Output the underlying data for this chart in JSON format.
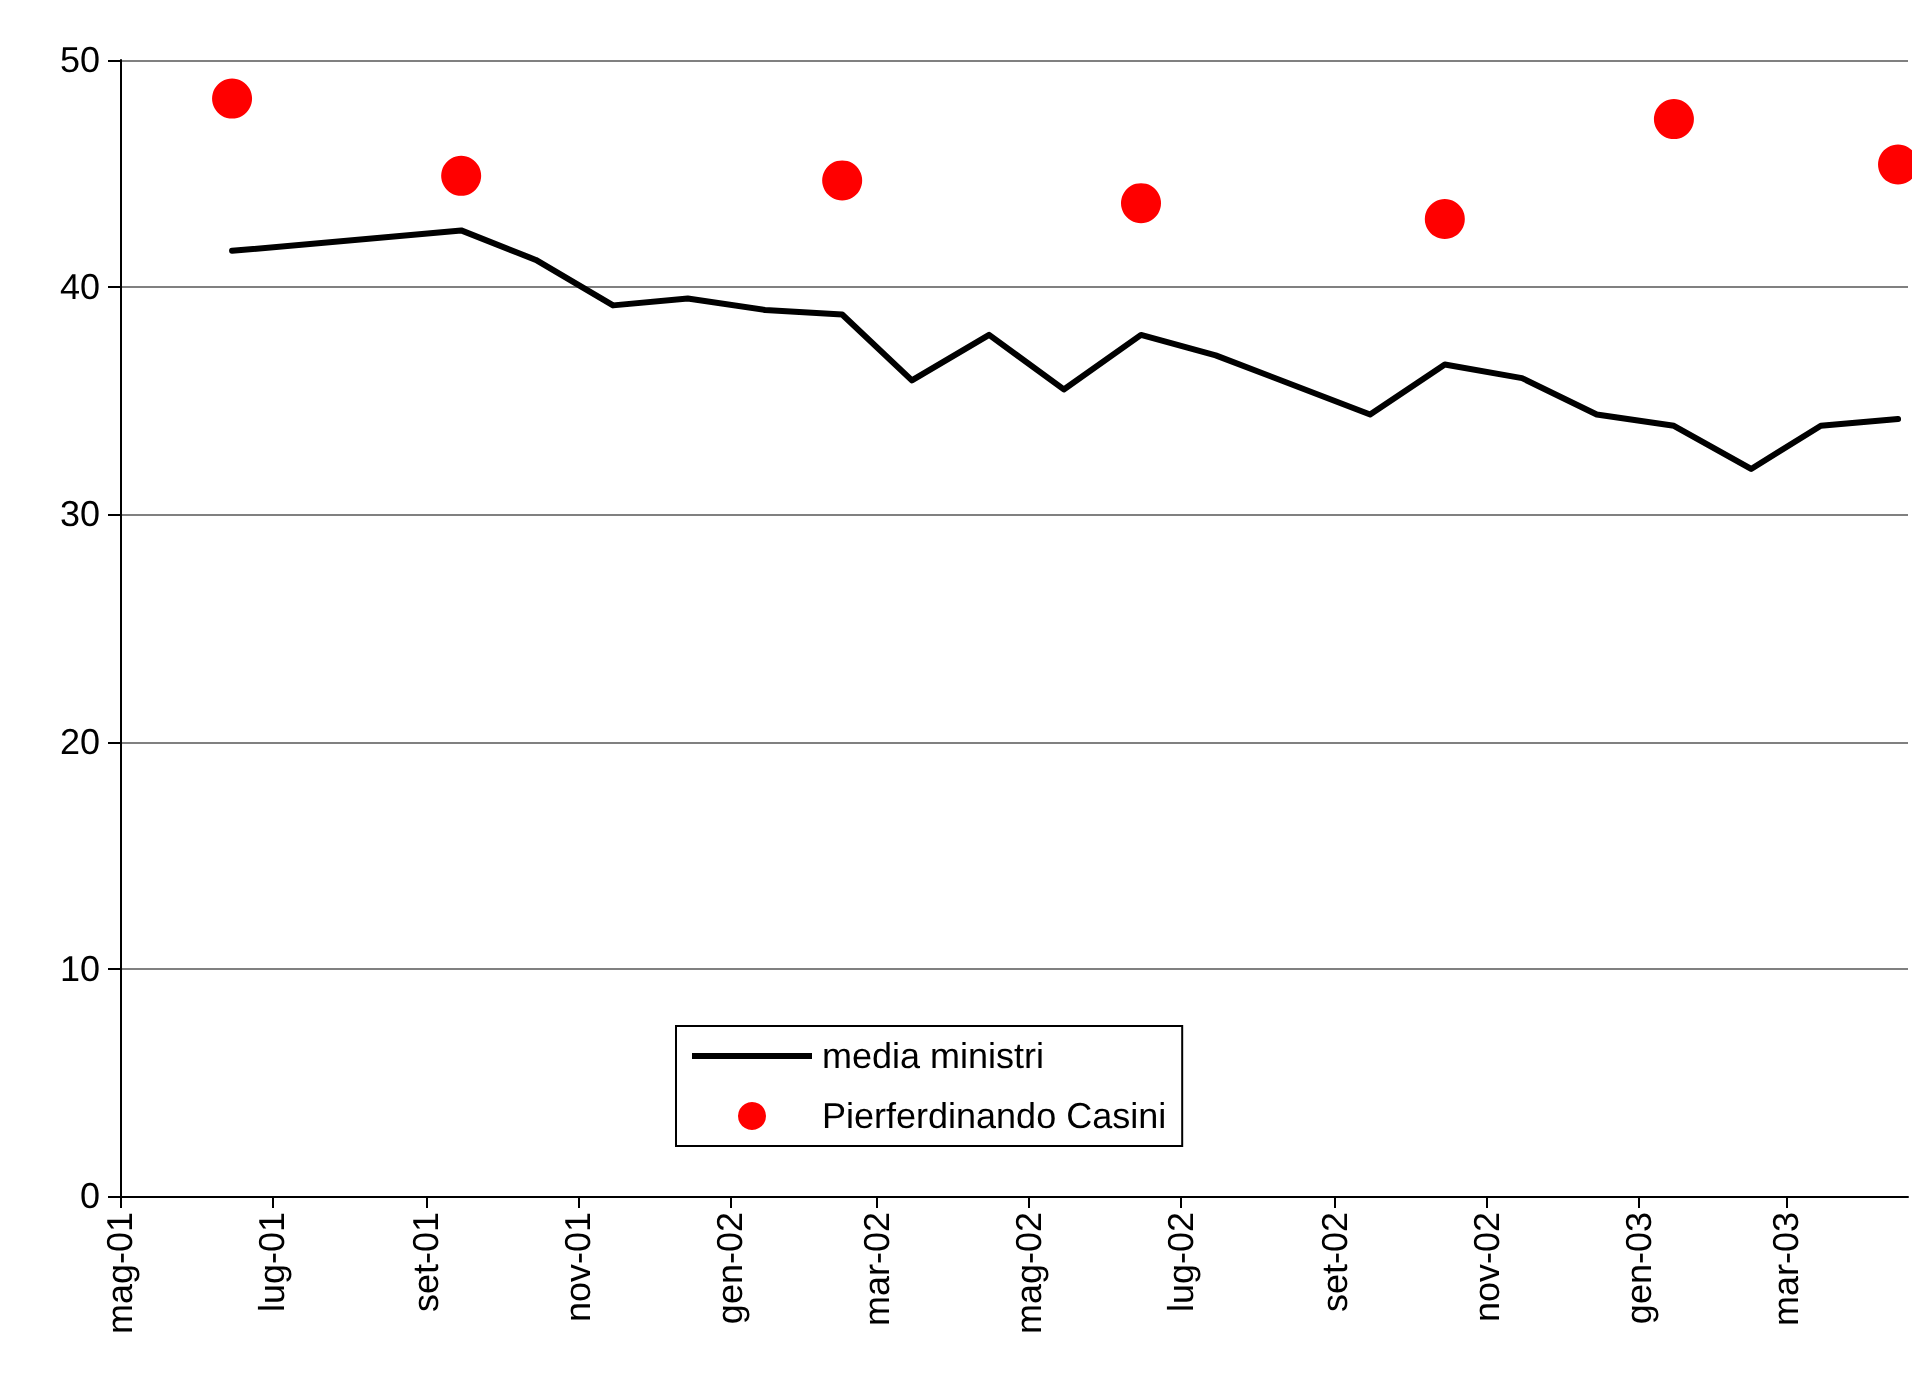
{
  "chart_data": {
    "type": "line",
    "xlim": [
      "2001-05-01",
      "2003-04-19"
    ],
    "xticks": [
      {
        "value": "2001-05-01",
        "label": "mag-01"
      },
      {
        "value": "2001-07-01",
        "label": "lug-01"
      },
      {
        "value": "2001-09-01",
        "label": "set-01"
      },
      {
        "value": "2001-11-01",
        "label": "nov-01"
      },
      {
        "value": "2002-01-01",
        "label": "gen-02"
      },
      {
        "value": "2002-03-01",
        "label": "mar-02"
      },
      {
        "value": "2002-05-01",
        "label": "mag-02"
      },
      {
        "value": "2002-07-01",
        "label": "lug-02"
      },
      {
        "value": "2002-09-01",
        "label": "set-02"
      },
      {
        "value": "2002-11-01",
        "label": "nov-02"
      },
      {
        "value": "2003-01-01",
        "label": "gen-03"
      },
      {
        "value": "2003-03-01",
        "label": "mar-03"
      }
    ],
    "ylim": [
      0,
      50
    ],
    "yticks": [
      0,
      10,
      20,
      30,
      40,
      50
    ],
    "grid": "y",
    "legend": "bottom left",
    "series": [
      {
        "name": "media ministri",
        "color": "#000000",
        "marker": "none",
        "line_style": "solid",
        "x": [
          "2001-06-15",
          "2001-09-15",
          "2001-10-15",
          "2001-11-15",
          "2001-12-15",
          "2002-01-15",
          "2002-02-15",
          "2002-03-15",
          "2002-04-15",
          "2002-05-15",
          "2002-06-15",
          "2002-07-15",
          "2002-09-15",
          "2002-10-15",
          "2002-11-15",
          "2002-12-15",
          "2003-01-15",
          "2003-02-15",
          "2003-03-15",
          "2003-04-15"
        ],
        "values": [
          41.6,
          42.5,
          41.2,
          39.2,
          39.5,
          39.0,
          38.8,
          35.9,
          37.9,
          35.5,
          37.9,
          37.0,
          34.4,
          36.6,
          36.0,
          34.4,
          33.9,
          32.0,
          33.9,
          34.2
        ]
      },
      {
        "name": "Pierferdinando Casini",
        "type": "scatter",
        "color": "#ff0000",
        "marker": "circle",
        "x": [
          "2001-06-15",
          "2001-09-15",
          "2002-02-15",
          "2002-06-15",
          "2002-10-15",
          "2003-01-15",
          "2003-04-15"
        ],
        "values": [
          48.3,
          44.9,
          44.7,
          43.7,
          43.0,
          47.4,
          45.4
        ]
      }
    ]
  }
}
